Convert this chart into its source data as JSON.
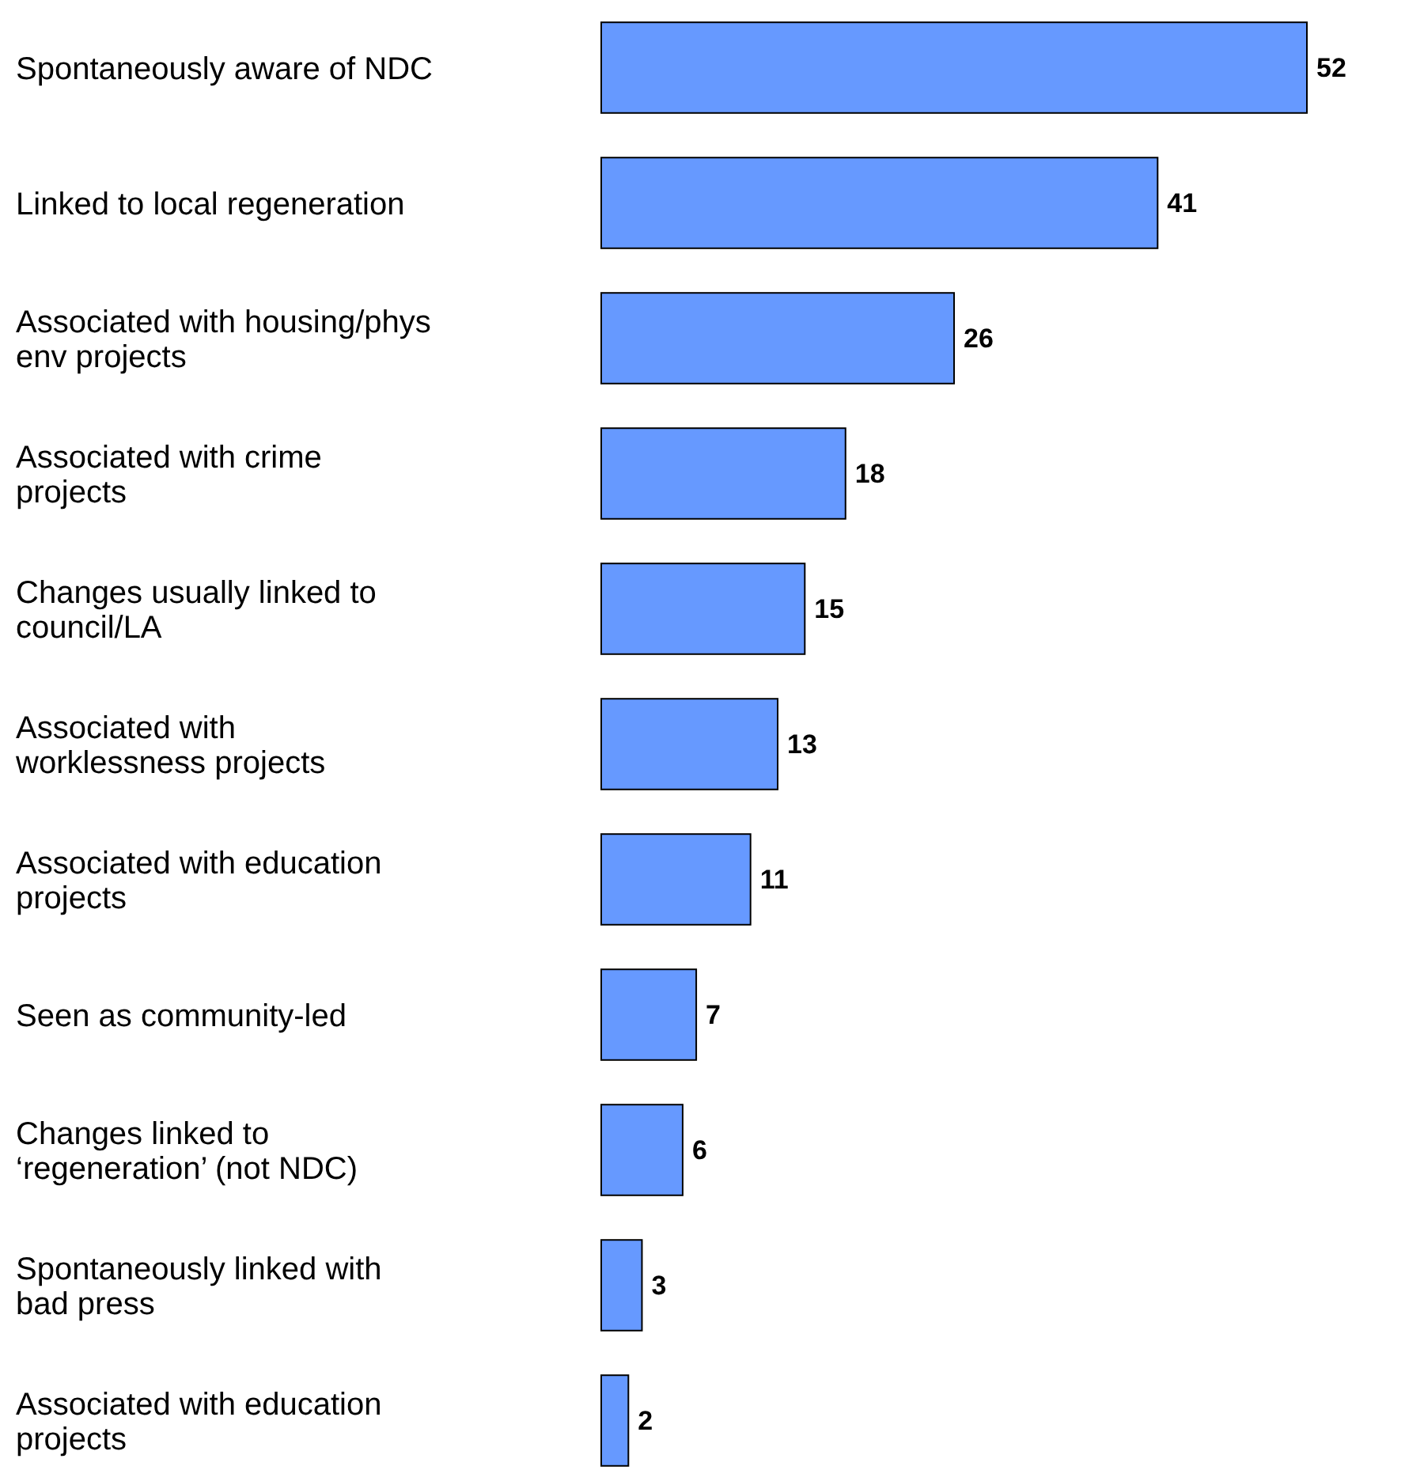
{
  "chart_data": {
    "type": "bar",
    "orientation": "horizontal",
    "data_labels": true,
    "color": "#6699ff",
    "categories": [
      "Spontaneously aware of NDC",
      "Linked to local regeneration",
      "Associated with housing/phys\nenv projects",
      "Associated with crime\nprojects",
      "Changes usually linked to\ncouncil/LA",
      "Associated with\nworklessness projects",
      "Associated with education\nprojects",
      "Seen as community-led",
      "Changes linked to\n‘regeneration’ (not NDC)",
      "Spontaneously linked with\nbad press",
      "Associated with education\nprojects"
    ],
    "values": [
      52,
      41,
      26,
      18,
      15,
      13,
      11,
      7,
      6,
      3,
      2
    ]
  }
}
